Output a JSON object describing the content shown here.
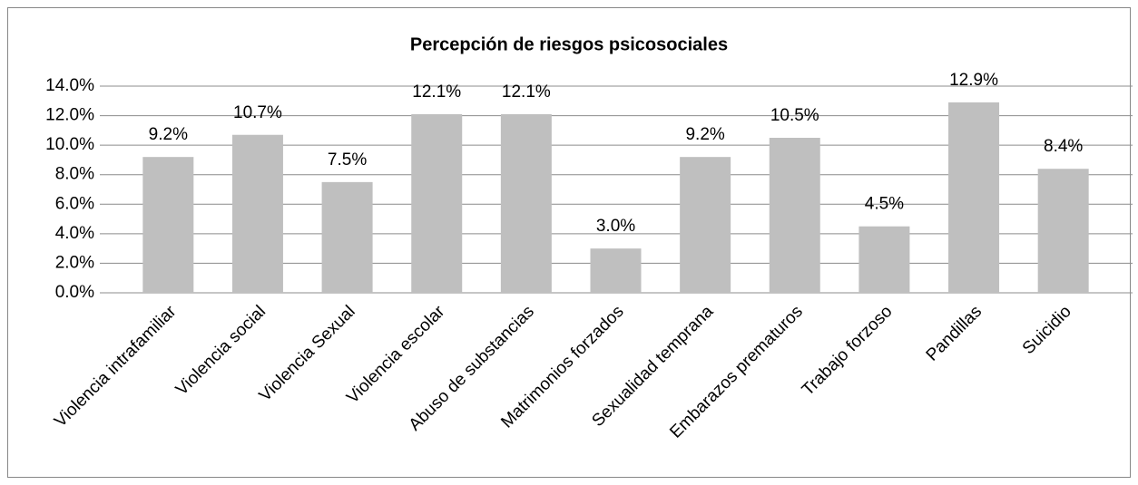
{
  "chart_data": {
    "type": "bar",
    "title": "Percepción de riesgos psicosociales",
    "categories": [
      "Violencia intrafamiliar",
      "Violencia social",
      "Violencia Sexual",
      "Violencia escolar",
      "Abuso de substancias",
      "Matrimonios forzados",
      "Sexualidad temprana",
      "Embarazos prematuros",
      "Trabajo forzoso",
      "Pandillas",
      "Suicidio"
    ],
    "values": [
      9.2,
      10.7,
      7.5,
      12.1,
      12.1,
      3.0,
      9.2,
      10.5,
      4.5,
      12.9,
      8.4
    ],
    "value_labels": [
      "9.2%",
      "10.7%",
      "7.5%",
      "12.1%",
      "12.1%",
      "3.0%",
      "9.2%",
      "10.5%",
      "4.5%",
      "12.9%",
      "8.4%"
    ],
    "color": "#bfbfbf",
    "ylim": [
      0,
      14
    ],
    "yticks": [
      {
        "value": 0,
        "label": "0.0%"
      },
      {
        "value": 2,
        "label": "2.0%"
      },
      {
        "value": 4,
        "label": "4.0%"
      },
      {
        "value": 6,
        "label": "6.0%"
      },
      {
        "value": 8,
        "label": "8.0%"
      },
      {
        "value": 10,
        "label": "10.0%"
      },
      {
        "value": 12,
        "label": "12.0%"
      },
      {
        "value": 14,
        "label": "14.0%"
      }
    ],
    "grid": true
  }
}
